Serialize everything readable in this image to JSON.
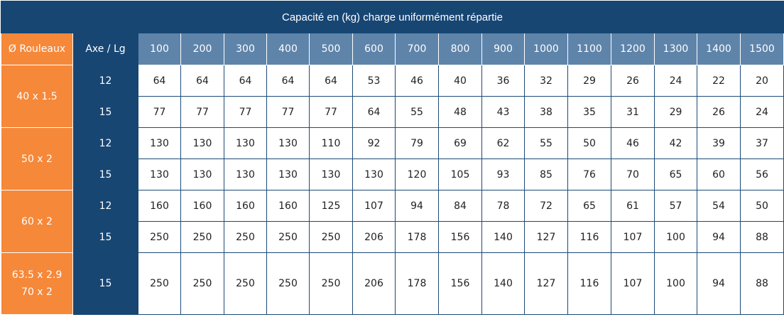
{
  "table": {
    "title": "Capacité en (kg) charge uniformément répartie",
    "col_header_rouleaux": "Ø Rouleaux",
    "col_header_axe": "Axe / Lg",
    "lengths": [
      "100",
      "200",
      "300",
      "400",
      "500",
      "600",
      "700",
      "800",
      "900",
      "1000",
      "1100",
      "1200",
      "1300",
      "1400",
      "1500"
    ],
    "groups": [
      {
        "diameter": [
          "40 x 1.5"
        ],
        "rows": [
          {
            "axe": "12",
            "values": [
              "64",
              "64",
              "64",
              "64",
              "64",
              "53",
              "46",
              "40",
              "36",
              "32",
              "29",
              "26",
              "24",
              "22",
              "20"
            ]
          },
          {
            "axe": "15",
            "values": [
              "77",
              "77",
              "77",
              "77",
              "77",
              "64",
              "55",
              "48",
              "43",
              "38",
              "35",
              "31",
              "29",
              "26",
              "24"
            ]
          }
        ]
      },
      {
        "diameter": [
          "50 x 2"
        ],
        "rows": [
          {
            "axe": "12",
            "values": [
              "130",
              "130",
              "130",
              "130",
              "110",
              "92",
              "79",
              "69",
              "62",
              "55",
              "50",
              "46",
              "42",
              "39",
              "37"
            ]
          },
          {
            "axe": "15",
            "values": [
              "130",
              "130",
              "130",
              "130",
              "130",
              "130",
              "120",
              "105",
              "93",
              "85",
              "76",
              "70",
              "65",
              "60",
              "56"
            ]
          }
        ]
      },
      {
        "diameter": [
          "60 x 2"
        ],
        "rows": [
          {
            "axe": "12",
            "values": [
              "160",
              "160",
              "160",
              "160",
              "125",
              "107",
              "94",
              "84",
              "78",
              "72",
              "65",
              "61",
              "57",
              "54",
              "50"
            ]
          },
          {
            "axe": "15",
            "values": [
              "250",
              "250",
              "250",
              "250",
              "250",
              "206",
              "178",
              "156",
              "140",
              "127",
              "116",
              "107",
              "100",
              "94",
              "88"
            ]
          }
        ]
      },
      {
        "diameter": [
          "63.5 x 2.9",
          "70 x 2"
        ],
        "rows": [
          {
            "axe": "15",
            "values": [
              "250",
              "250",
              "250",
              "250",
              "250",
              "206",
              "178",
              "156",
              "140",
              "127",
              "116",
              "107",
              "100",
              "94",
              "88"
            ]
          }
        ]
      }
    ]
  }
}
